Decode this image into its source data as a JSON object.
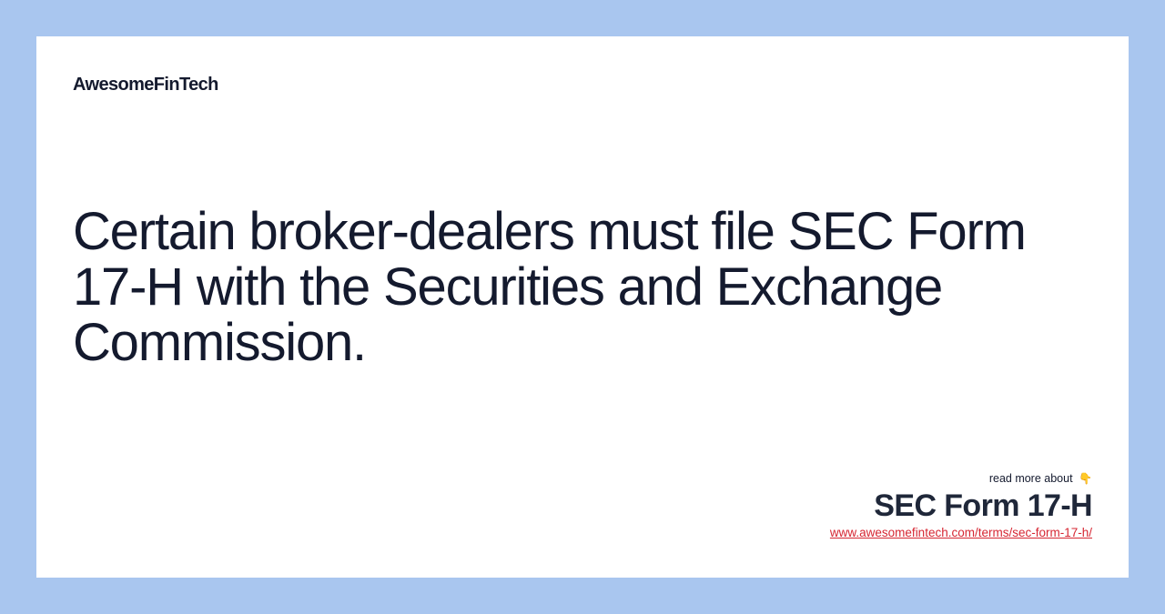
{
  "brand": {
    "name": "AwesomeFinTech"
  },
  "headline": {
    "text": "Certain broker-dealers must file SEC Form 17-H with the Securities and Exchange Commission."
  },
  "read_more": {
    "label": "read more about",
    "icon": "pointing-down-hand-icon",
    "icon_glyph": "👇",
    "term": "SEC Form 17-H",
    "url": "www.awesomefintech.com/terms/sec-form-17-h/"
  },
  "colors": {
    "background": "#a9c6ef",
    "card": "#ffffff",
    "text": "#141a2e",
    "link": "#d62632"
  }
}
